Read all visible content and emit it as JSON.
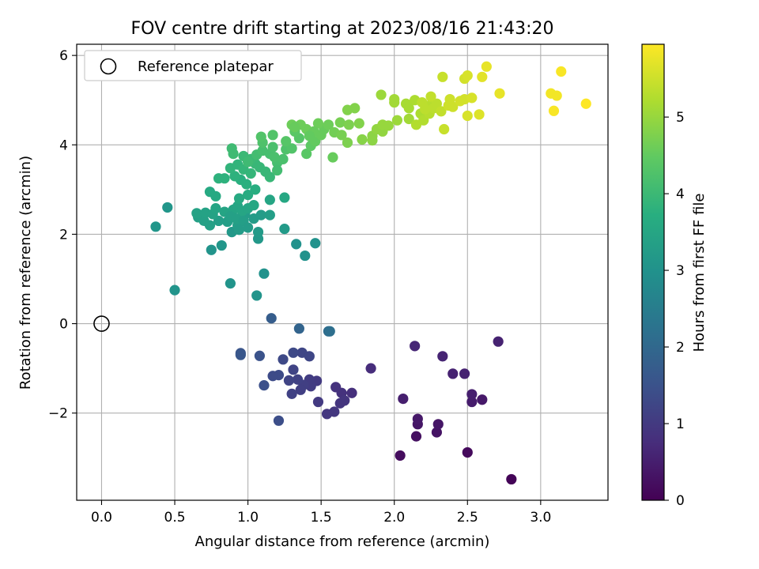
{
  "chart_data": {
    "type": "scatter",
    "title": "FOV centre drift starting at 2023/08/16 21:43:20",
    "xlabel": "Angular distance from reference (arcmin)",
    "ylabel": "Rotation from reference (arcmin)",
    "xlim": [
      -0.17,
      3.46
    ],
    "ylim": [
      -3.95,
      6.25
    ],
    "xticks": [
      0.0,
      0.5,
      1.0,
      1.5,
      2.0,
      2.5,
      3.0
    ],
    "xtick_labels": [
      "0.0",
      "0.5",
      "1.0",
      "1.5",
      "2.0",
      "2.5",
      "3.0"
    ],
    "yticks": [
      -2,
      0,
      2,
      4,
      6
    ],
    "ytick_labels": [
      "−2",
      "0",
      "2",
      "4",
      "6"
    ],
    "grid": true,
    "legend": {
      "placement": "top-left",
      "entries": [
        "Reference platepar"
      ]
    },
    "reference_point": {
      "x": 0.0,
      "y": 0.0,
      "label": "Reference platepar"
    },
    "colorbar": {
      "label": "Hours from first FF file",
      "colormap": "viridis",
      "range": [
        0,
        5.95
      ],
      "ticks": [
        0,
        1,
        2,
        3,
        4,
        5
      ],
      "tick_labels": [
        "0",
        "1",
        "2",
        "3",
        "4",
        "5"
      ]
    },
    "series": [
      {
        "fields": [
          "x",
          "y",
          "hours"
        ],
        "points": [
          [
            2.8,
            -3.48,
            0.05
          ],
          [
            2.5,
            -2.88,
            0.15
          ],
          [
            2.04,
            -2.95,
            0.2
          ],
          [
            2.15,
            -2.52,
            0.25
          ],
          [
            2.29,
            -2.43,
            0.3
          ],
          [
            2.3,
            -2.25,
            0.35
          ],
          [
            2.16,
            -2.25,
            0.35
          ],
          [
            2.16,
            -2.13,
            0.4
          ],
          [
            2.6,
            -1.7,
            0.4
          ],
          [
            2.53,
            -1.75,
            0.45
          ],
          [
            2.53,
            -1.58,
            0.5
          ],
          [
            2.06,
            -1.68,
            0.5
          ],
          [
            2.4,
            -1.12,
            0.55
          ],
          [
            2.48,
            -1.12,
            0.55
          ],
          [
            2.33,
            -0.73,
            0.6
          ],
          [
            2.14,
            -0.5,
            0.65
          ],
          [
            2.71,
            -0.4,
            0.55
          ],
          [
            1.84,
            -1.0,
            0.75
          ],
          [
            1.71,
            -1.55,
            0.8
          ],
          [
            1.64,
            -1.55,
            0.85
          ],
          [
            1.6,
            -1.42,
            0.85
          ],
          [
            1.63,
            -1.78,
            0.9
          ],
          [
            1.66,
            -1.72,
            0.9
          ],
          [
            1.59,
            -1.97,
            0.95
          ],
          [
            1.54,
            -2.02,
            0.95
          ],
          [
            1.48,
            -1.75,
            1.0
          ],
          [
            1.47,
            -1.28,
            1.0
          ],
          [
            1.43,
            -1.4,
            1.05
          ],
          [
            1.42,
            -1.25,
            1.05
          ],
          [
            1.38,
            -1.37,
            1.1
          ],
          [
            1.36,
            -1.48,
            1.1
          ],
          [
            1.34,
            -1.25,
            1.15
          ],
          [
            1.3,
            -1.57,
            1.15
          ],
          [
            1.28,
            -1.27,
            1.2
          ],
          [
            1.31,
            -1.03,
            1.2
          ],
          [
            1.37,
            -0.65,
            1.25
          ],
          [
            1.42,
            -0.73,
            1.25
          ],
          [
            1.31,
            -0.65,
            1.3
          ],
          [
            1.24,
            -0.8,
            1.3
          ],
          [
            1.21,
            -1.15,
            1.35
          ],
          [
            1.17,
            -1.17,
            1.35
          ],
          [
            1.21,
            -2.17,
            1.4
          ],
          [
            1.11,
            -1.38,
            1.45
          ],
          [
            1.08,
            -0.72,
            1.5
          ],
          [
            0.95,
            -0.66,
            1.55
          ],
          [
            0.95,
            -0.7,
            1.6
          ],
          [
            1.16,
            0.12,
            1.75
          ],
          [
            1.35,
            -0.11,
            1.9
          ],
          [
            1.55,
            -0.17,
            2.1
          ],
          [
            1.56,
            -0.17,
            2.15
          ],
          [
            0.5,
            0.75,
            3.05
          ],
          [
            1.06,
            0.63,
            3.05
          ],
          [
            0.88,
            0.9,
            3.05
          ],
          [
            1.11,
            1.12,
            3.0
          ],
          [
            0.37,
            2.17,
            3.1
          ],
          [
            0.45,
            2.6,
            3.1
          ],
          [
            1.39,
            1.52,
            3.0
          ],
          [
            1.33,
            1.78,
            3.0
          ],
          [
            1.46,
            1.8,
            3.0
          ],
          [
            0.75,
            1.65,
            3.05
          ],
          [
            0.82,
            1.75,
            3.1
          ],
          [
            0.89,
            2.05,
            3.15
          ],
          [
            1.07,
            1.9,
            3.15
          ],
          [
            1.07,
            2.05,
            3.2
          ],
          [
            1.25,
            2.12,
            3.2
          ],
          [
            1.04,
            2.35,
            3.25
          ],
          [
            1.09,
            2.43,
            3.25
          ],
          [
            1.15,
            2.43,
            3.3
          ],
          [
            0.98,
            2.45,
            3.25
          ],
          [
            0.93,
            2.2,
            3.3
          ],
          [
            0.86,
            2.28,
            3.3
          ],
          [
            0.8,
            2.3,
            3.3
          ],
          [
            0.74,
            2.2,
            3.35
          ],
          [
            0.7,
            2.3,
            3.35
          ],
          [
            0.66,
            2.38,
            3.35
          ],
          [
            0.65,
            2.47,
            3.4
          ],
          [
            0.71,
            2.48,
            3.4
          ],
          [
            0.76,
            2.45,
            3.4
          ],
          [
            0.78,
            2.58,
            3.45
          ],
          [
            0.84,
            2.5,
            3.45
          ],
          [
            0.9,
            2.55,
            3.45
          ],
          [
            0.93,
            2.63,
            3.5
          ],
          [
            0.96,
            2.52,
            3.5
          ],
          [
            1.0,
            2.58,
            3.5
          ],
          [
            1.04,
            2.65,
            3.55
          ],
          [
            0.88,
            2.4,
            3.35
          ],
          [
            0.92,
            2.35,
            3.35
          ],
          [
            0.97,
            2.3,
            3.3
          ],
          [
            0.94,
            2.1,
            3.25
          ],
          [
            1.0,
            2.15,
            3.25
          ],
          [
            1.15,
            2.77,
            3.5
          ],
          [
            1.25,
            2.82,
            3.55
          ],
          [
            0.74,
            2.95,
            3.6
          ],
          [
            0.78,
            2.85,
            3.6
          ],
          [
            0.94,
            2.8,
            3.6
          ],
          [
            1.0,
            2.88,
            3.65
          ],
          [
            1.05,
            3.0,
            3.7
          ],
          [
            0.99,
            3.12,
            3.75
          ],
          [
            0.95,
            3.22,
            3.75
          ],
          [
            0.91,
            3.3,
            3.8
          ],
          [
            0.84,
            3.25,
            3.8
          ],
          [
            0.8,
            3.25,
            3.8
          ],
          [
            0.88,
            3.48,
            3.85
          ],
          [
            0.93,
            3.56,
            3.85
          ],
          [
            0.97,
            3.45,
            3.9
          ],
          [
            1.02,
            3.36,
            3.9
          ],
          [
            1.05,
            3.58,
            3.95
          ],
          [
            1.08,
            3.5,
            3.95
          ],
          [
            1.12,
            3.4,
            3.95
          ],
          [
            1.15,
            3.28,
            3.95
          ],
          [
            1.02,
            3.68,
            4.0
          ],
          [
            0.97,
            3.75,
            4.0
          ],
          [
            0.9,
            3.8,
            4.05
          ],
          [
            0.89,
            3.92,
            4.05
          ],
          [
            1.0,
            3.62,
            4.05
          ],
          [
            1.06,
            3.78,
            4.1
          ],
          [
            1.1,
            3.87,
            4.15
          ],
          [
            1.15,
            3.8,
            4.15
          ],
          [
            1.2,
            3.6,
            4.15
          ],
          [
            1.2,
            3.43,
            4.1
          ],
          [
            1.24,
            3.68,
            4.2
          ],
          [
            1.26,
            3.9,
            4.25
          ],
          [
            1.3,
            3.92,
            4.3
          ],
          [
            1.35,
            4.15,
            4.35
          ],
          [
            1.32,
            4.3,
            4.4
          ],
          [
            1.17,
            3.95,
            4.2
          ],
          [
            1.17,
            4.22,
            4.3
          ],
          [
            1.1,
            4.05,
            4.25
          ],
          [
            1.09,
            4.18,
            4.3
          ],
          [
            1.18,
            3.73,
            4.2
          ],
          [
            1.26,
            4.08,
            4.35
          ],
          [
            1.4,
            3.8,
            4.4
          ],
          [
            1.43,
            3.98,
            4.45
          ],
          [
            1.46,
            4.08,
            4.5
          ],
          [
            1.5,
            4.22,
            4.55
          ],
          [
            1.52,
            4.35,
            4.55
          ],
          [
            1.55,
            4.45,
            4.6
          ],
          [
            1.48,
            4.48,
            4.6
          ],
          [
            1.4,
            4.35,
            4.6
          ],
          [
            1.36,
            4.45,
            4.6
          ],
          [
            1.3,
            4.45,
            4.6
          ],
          [
            1.32,
            4.4,
            4.55
          ],
          [
            1.45,
            4.3,
            4.55
          ],
          [
            1.42,
            4.2,
            4.5
          ],
          [
            1.58,
            3.72,
            4.55
          ],
          [
            1.59,
            4.28,
            4.65
          ],
          [
            1.64,
            4.22,
            4.7
          ],
          [
            1.63,
            4.5,
            4.7
          ],
          [
            1.69,
            4.45,
            4.75
          ],
          [
            1.73,
            4.82,
            4.8
          ],
          [
            1.68,
            4.78,
            4.8
          ],
          [
            1.68,
            4.05,
            4.75
          ],
          [
            1.76,
            4.48,
            4.8
          ],
          [
            1.78,
            4.12,
            4.85
          ],
          [
            1.85,
            4.2,
            4.9
          ],
          [
            1.88,
            4.35,
            4.95
          ],
          [
            1.85,
            4.1,
            4.9
          ],
          [
            1.92,
            4.3,
            4.95
          ],
          [
            1.92,
            4.45,
            5.0
          ],
          [
            1.96,
            4.43,
            5.0
          ],
          [
            2.02,
            4.55,
            5.05
          ],
          [
            2.1,
            4.58,
            5.1
          ],
          [
            1.91,
            5.12,
            5.05
          ],
          [
            2.0,
            4.95,
            5.1
          ],
          [
            2.0,
            5.02,
            5.1
          ],
          [
            2.08,
            4.92,
            5.15
          ],
          [
            2.1,
            4.82,
            5.15
          ],
          [
            2.14,
            5.0,
            5.2
          ],
          [
            2.18,
            4.7,
            5.2
          ],
          [
            2.15,
            4.45,
            5.25
          ],
          [
            2.2,
            4.55,
            5.25
          ],
          [
            2.24,
            4.7,
            5.3
          ],
          [
            2.24,
            4.88,
            5.3
          ],
          [
            2.27,
            4.82,
            5.35
          ],
          [
            2.29,
            4.92,
            5.35
          ],
          [
            2.32,
            4.75,
            5.4
          ],
          [
            2.25,
            5.08,
            5.4
          ],
          [
            2.19,
            4.95,
            5.35
          ],
          [
            2.21,
            4.8,
            5.35
          ],
          [
            2.33,
            5.52,
            5.45
          ],
          [
            2.34,
            4.35,
            5.45
          ],
          [
            2.37,
            4.88,
            5.5
          ],
          [
            2.38,
            5.02,
            5.5
          ],
          [
            2.4,
            4.85,
            5.5
          ],
          [
            2.45,
            4.98,
            5.55
          ],
          [
            2.48,
            5.02,
            5.55
          ],
          [
            2.48,
            5.48,
            5.55
          ],
          [
            2.5,
            5.55,
            5.6
          ],
          [
            2.53,
            5.05,
            5.6
          ],
          [
            2.5,
            4.65,
            5.6
          ],
          [
            2.58,
            4.68,
            5.65
          ],
          [
            2.6,
            5.52,
            5.7
          ],
          [
            2.63,
            5.75,
            5.75
          ],
          [
            2.72,
            5.15,
            5.75
          ],
          [
            3.07,
            5.15,
            5.85
          ],
          [
            3.11,
            5.1,
            5.85
          ],
          [
            3.09,
            4.76,
            5.9
          ],
          [
            3.14,
            5.64,
            5.9
          ],
          [
            3.31,
            4.92,
            5.95
          ]
        ]
      }
    ]
  }
}
